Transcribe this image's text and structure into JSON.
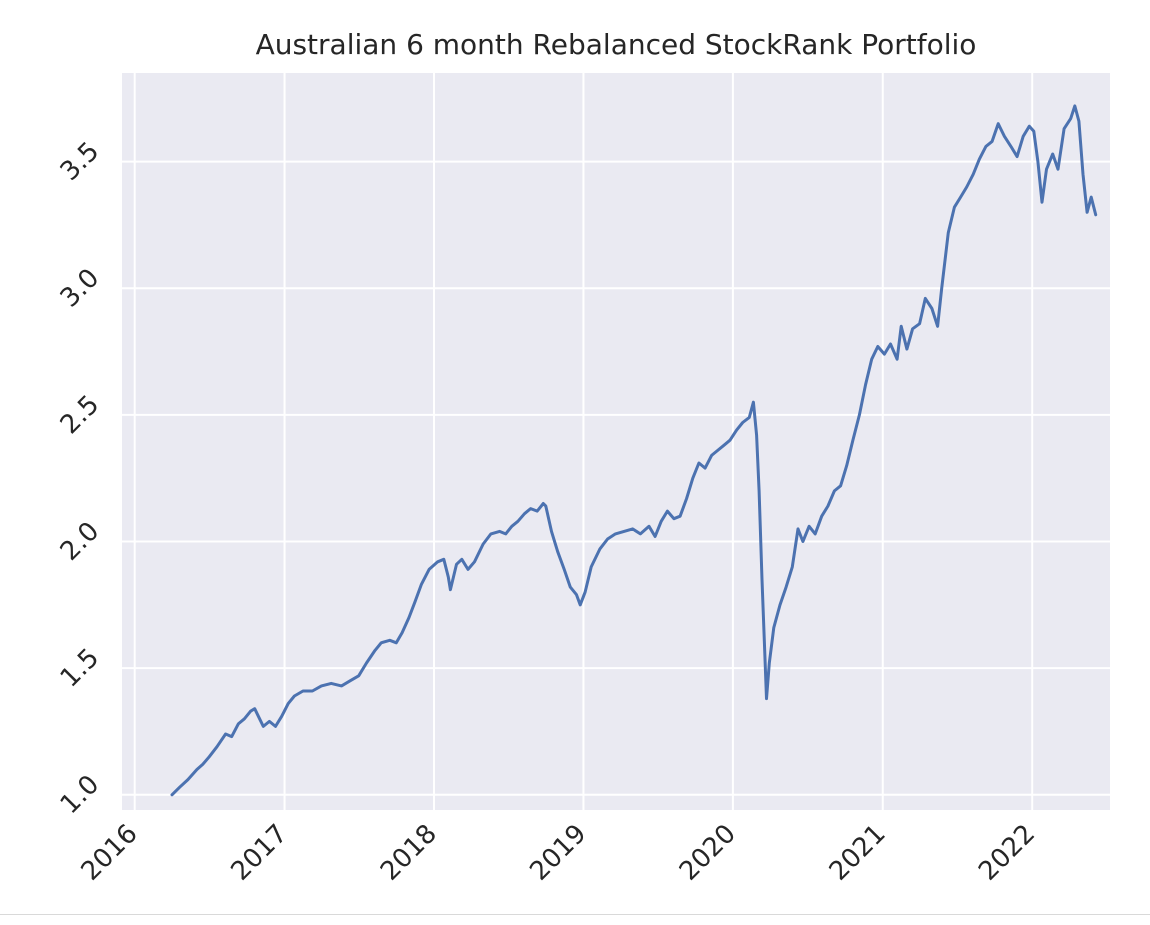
{
  "chart_data": {
    "type": "line",
    "title": "Australian 6 month Rebalanced StockRank Portfolio",
    "xlabel": "",
    "ylabel": "",
    "x_ticks": [
      "2016",
      "2017",
      "2018",
      "2019",
      "2020",
      "2021",
      "2022"
    ],
    "y_ticks": [
      "1.0",
      "1.5",
      "2.0",
      "2.5",
      "3.0",
      "3.5"
    ],
    "xlim": [
      "2015-12-01",
      "2022-07-10"
    ],
    "ylim": [
      0.94,
      3.85
    ],
    "grid": true,
    "legend": "none",
    "series": [
      {
        "color": "#4c72b0",
        "points": [
          [
            "2016-04-01",
            1.0
          ],
          [
            "2016-04-20",
            1.03
          ],
          [
            "2016-05-10",
            1.06
          ],
          [
            "2016-06-01",
            1.1
          ],
          [
            "2016-06-15",
            1.12
          ],
          [
            "2016-07-01",
            1.15
          ],
          [
            "2016-07-20",
            1.19
          ],
          [
            "2016-08-10",
            1.24
          ],
          [
            "2016-08-25",
            1.23
          ],
          [
            "2016-09-10",
            1.28
          ],
          [
            "2016-09-25",
            1.3
          ],
          [
            "2016-10-10",
            1.33
          ],
          [
            "2016-10-20",
            1.34
          ],
          [
            "2016-11-01",
            1.3
          ],
          [
            "2016-11-10",
            1.27
          ],
          [
            "2016-11-25",
            1.29
          ],
          [
            "2016-12-10",
            1.27
          ],
          [
            "2016-12-25",
            1.31
          ],
          [
            "2017-01-10",
            1.36
          ],
          [
            "2017-01-25",
            1.39
          ],
          [
            "2017-02-15",
            1.41
          ],
          [
            "2017-03-10",
            1.41
          ],
          [
            "2017-04-01",
            1.43
          ],
          [
            "2017-04-25",
            1.44
          ],
          [
            "2017-05-20",
            1.43
          ],
          [
            "2017-06-10",
            1.45
          ],
          [
            "2017-07-01",
            1.47
          ],
          [
            "2017-07-20",
            1.52
          ],
          [
            "2017-08-10",
            1.57
          ],
          [
            "2017-08-25",
            1.6
          ],
          [
            "2017-09-15",
            1.61
          ],
          [
            "2017-10-01",
            1.6
          ],
          [
            "2017-10-15",
            1.64
          ],
          [
            "2017-11-01",
            1.7
          ],
          [
            "2017-11-15",
            1.76
          ],
          [
            "2017-12-01",
            1.83
          ],
          [
            "2017-12-20",
            1.89
          ],
          [
            "2018-01-10",
            1.92
          ],
          [
            "2018-01-25",
            1.93
          ],
          [
            "2018-02-05",
            1.86
          ],
          [
            "2018-02-10",
            1.81
          ],
          [
            "2018-02-25",
            1.91
          ],
          [
            "2018-03-10",
            1.93
          ],
          [
            "2018-03-25",
            1.89
          ],
          [
            "2018-04-10",
            1.92
          ],
          [
            "2018-05-01",
            1.99
          ],
          [
            "2018-05-20",
            2.03
          ],
          [
            "2018-06-10",
            2.04
          ],
          [
            "2018-06-25",
            2.03
          ],
          [
            "2018-07-10",
            2.06
          ],
          [
            "2018-07-25",
            2.08
          ],
          [
            "2018-08-10",
            2.11
          ],
          [
            "2018-08-25",
            2.13
          ],
          [
            "2018-09-10",
            2.12
          ],
          [
            "2018-09-25",
            2.15
          ],
          [
            "2018-10-01",
            2.14
          ],
          [
            "2018-10-15",
            2.04
          ],
          [
            "2018-10-30",
            1.96
          ],
          [
            "2018-11-15",
            1.89
          ],
          [
            "2018-11-30",
            1.82
          ],
          [
            "2018-12-15",
            1.79
          ],
          [
            "2018-12-24",
            1.75
          ],
          [
            "2019-01-05",
            1.8
          ],
          [
            "2019-01-20",
            1.9
          ],
          [
            "2019-02-10",
            1.97
          ],
          [
            "2019-03-01",
            2.01
          ],
          [
            "2019-03-20",
            2.03
          ],
          [
            "2019-04-10",
            2.04
          ],
          [
            "2019-05-01",
            2.05
          ],
          [
            "2019-05-20",
            2.03
          ],
          [
            "2019-06-10",
            2.06
          ],
          [
            "2019-06-25",
            2.02
          ],
          [
            "2019-07-10",
            2.08
          ],
          [
            "2019-07-25",
            2.12
          ],
          [
            "2019-08-10",
            2.09
          ],
          [
            "2019-08-25",
            2.1
          ],
          [
            "2019-09-10",
            2.17
          ],
          [
            "2019-09-25",
            2.25
          ],
          [
            "2019-10-10",
            2.31
          ],
          [
            "2019-10-25",
            2.29
          ],
          [
            "2019-11-10",
            2.34
          ],
          [
            "2019-11-25",
            2.36
          ],
          [
            "2019-12-10",
            2.38
          ],
          [
            "2019-12-25",
            2.4
          ],
          [
            "2020-01-10",
            2.44
          ],
          [
            "2020-01-25",
            2.47
          ],
          [
            "2020-02-10",
            2.49
          ],
          [
            "2020-02-20",
            2.55
          ],
          [
            "2020-02-28",
            2.42
          ],
          [
            "2020-03-05",
            2.2
          ],
          [
            "2020-03-12",
            1.85
          ],
          [
            "2020-03-18",
            1.6
          ],
          [
            "2020-03-23",
            1.38
          ],
          [
            "2020-03-30",
            1.52
          ],
          [
            "2020-04-10",
            1.66
          ],
          [
            "2020-04-25",
            1.75
          ],
          [
            "2020-05-10",
            1.82
          ],
          [
            "2020-05-25",
            1.9
          ],
          [
            "2020-06-08",
            2.05
          ],
          [
            "2020-06-20",
            2.0
          ],
          [
            "2020-07-05",
            2.06
          ],
          [
            "2020-07-20",
            2.03
          ],
          [
            "2020-08-05",
            2.1
          ],
          [
            "2020-08-20",
            2.14
          ],
          [
            "2020-09-05",
            2.2
          ],
          [
            "2020-09-20",
            2.22
          ],
          [
            "2020-10-05",
            2.3
          ],
          [
            "2020-10-20",
            2.4
          ],
          [
            "2020-11-05",
            2.5
          ],
          [
            "2020-11-20",
            2.62
          ],
          [
            "2020-12-05",
            2.72
          ],
          [
            "2020-12-20",
            2.77
          ],
          [
            "2021-01-05",
            2.74
          ],
          [
            "2021-01-20",
            2.78
          ],
          [
            "2021-02-05",
            2.72
          ],
          [
            "2021-02-15",
            2.85
          ],
          [
            "2021-03-01",
            2.76
          ],
          [
            "2021-03-15",
            2.84
          ],
          [
            "2021-04-01",
            2.86
          ],
          [
            "2021-04-15",
            2.96
          ],
          [
            "2021-05-01",
            2.92
          ],
          [
            "2021-05-15",
            2.85
          ],
          [
            "2021-05-25",
            3.0
          ],
          [
            "2021-06-10",
            3.22
          ],
          [
            "2021-06-25",
            3.32
          ],
          [
            "2021-07-10",
            3.36
          ],
          [
            "2021-07-25",
            3.4
          ],
          [
            "2021-08-10",
            3.45
          ],
          [
            "2021-08-25",
            3.51
          ],
          [
            "2021-09-10",
            3.56
          ],
          [
            "2021-09-25",
            3.58
          ],
          [
            "2021-10-10",
            3.65
          ],
          [
            "2021-10-25",
            3.6
          ],
          [
            "2021-11-10",
            3.56
          ],
          [
            "2021-11-25",
            3.52
          ],
          [
            "2021-12-10",
            3.6
          ],
          [
            "2021-12-25",
            3.64
          ],
          [
            "2022-01-05",
            3.62
          ],
          [
            "2022-01-15",
            3.5
          ],
          [
            "2022-01-25",
            3.34
          ],
          [
            "2022-02-05",
            3.47
          ],
          [
            "2022-02-20",
            3.53
          ],
          [
            "2022-03-05",
            3.47
          ],
          [
            "2022-03-20",
            3.63
          ],
          [
            "2022-04-05",
            3.67
          ],
          [
            "2022-04-15",
            3.72
          ],
          [
            "2022-04-25",
            3.66
          ],
          [
            "2022-05-05",
            3.45
          ],
          [
            "2022-05-15",
            3.3
          ],
          [
            "2022-05-25",
            3.36
          ],
          [
            "2022-06-05",
            3.29
          ]
        ]
      }
    ]
  }
}
